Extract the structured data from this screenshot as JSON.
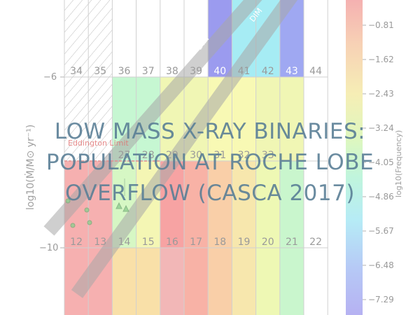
{
  "title": {
    "line1": "LOW MASS X-RAY BINARIES:",
    "line2": "POPULATION AT ROCHE LOBE",
    "line3": "OVERFLOW (CASCA 2017)"
  },
  "figure": {
    "y_axis_label": "log10(Ṁ/M⊙ yr⁻¹)",
    "y_ticks": [
      "−6",
      "−10"
    ],
    "colorbar_label": "log10(Frequency)",
    "colorbar_ticks": [
      "−0.81",
      "−1.62",
      "−2.43",
      "−3.24",
      "−4.05",
      "−4.86",
      "−5.67",
      "−6.48",
      "−7.29"
    ],
    "band_labels": [
      "DIM",
      "DIM"
    ],
    "eddington_label": "Eddington Limit",
    "row_top_numbers": [
      "34",
      "35",
      "36",
      "37",
      "38",
      "39",
      "40",
      "41",
      "42",
      "43",
      "44"
    ],
    "row_mid_numbers": [
      "27",
      "28",
      "29",
      "30",
      "31",
      "32",
      "33"
    ],
    "row_bottom_numbers": [
      "12",
      "13",
      "14",
      "15",
      "16",
      "17",
      "18",
      "19",
      "20",
      "21",
      "22"
    ],
    "cells_top": [
      "#ffffff",
      "#ffffff",
      "#ffffff",
      "#ffffff",
      "#ffffff",
      "#ffffff",
      "#9b9bef",
      "#a6ecf4",
      "#a6ecf4",
      "#9fa8f2",
      "#ffffff"
    ],
    "cells_mid": [
      "#ffffff",
      "#ffffff",
      "#c6f7d2",
      "#c6f7d2",
      "#f0f6b4",
      "#f0f6b4",
      "#f8f9b4",
      "#f8f9b4",
      "#f0f6b4",
      "#f0f6b4",
      "#ffffff"
    ],
    "cells_low": [
      "#f6b0b0",
      "#f6b0b0",
      "#d6f7c4",
      "#f4f6b4",
      "#f7a3a3",
      "#f8b2a6",
      "#f9cfa8",
      "#f7e7ad",
      "#eef8b4",
      "#c9f6cd",
      "#ffffff"
    ],
    "cells_bottom": [
      "#f6b0b0",
      "#f6b0b0",
      "#f9e0a8",
      "#f9e0a8",
      "#f2b7b7",
      "#f8b2a6",
      "#f9cfa8",
      "#f7e7ad",
      "#eef8b4",
      "#c9f6cd",
      "#ffffff"
    ]
  }
}
